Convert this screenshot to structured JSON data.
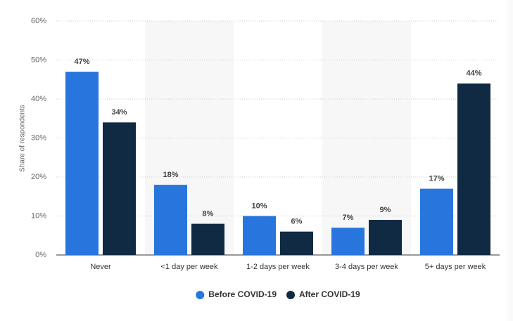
{
  "chart_data": {
    "type": "bar",
    "y_label": "Share of respondents",
    "categories": [
      "Never",
      "<1 day per week",
      "1-2 days per week",
      "3-4 days per week",
      "5+ days per week"
    ],
    "series": [
      {
        "name": "Before COVID-19",
        "color": "#2876dd",
        "values": [
          47,
          18,
          10,
          7,
          17
        ],
        "value_labels": [
          "47%",
          "18%",
          "10%",
          "7%",
          "17%"
        ]
      },
      {
        "name": "After COVID-19",
        "color": "#0f2a42",
        "values": [
          34,
          8,
          6,
          9,
          44
        ],
        "value_labels": [
          "34%",
          "8%",
          "6%",
          "9%",
          "44%"
        ]
      }
    ],
    "ylim": [
      0,
      60
    ],
    "yticks": [
      {
        "value": 0,
        "label": "0%"
      },
      {
        "value": 10,
        "label": "10%"
      },
      {
        "value": 20,
        "label": "20%"
      },
      {
        "value": 30,
        "label": "30%"
      },
      {
        "value": 40,
        "label": "40%"
      },
      {
        "value": 50,
        "label": "50%"
      },
      {
        "value": 60,
        "label": "60%"
      }
    ],
    "grid": true,
    "legend": "bottom"
  }
}
